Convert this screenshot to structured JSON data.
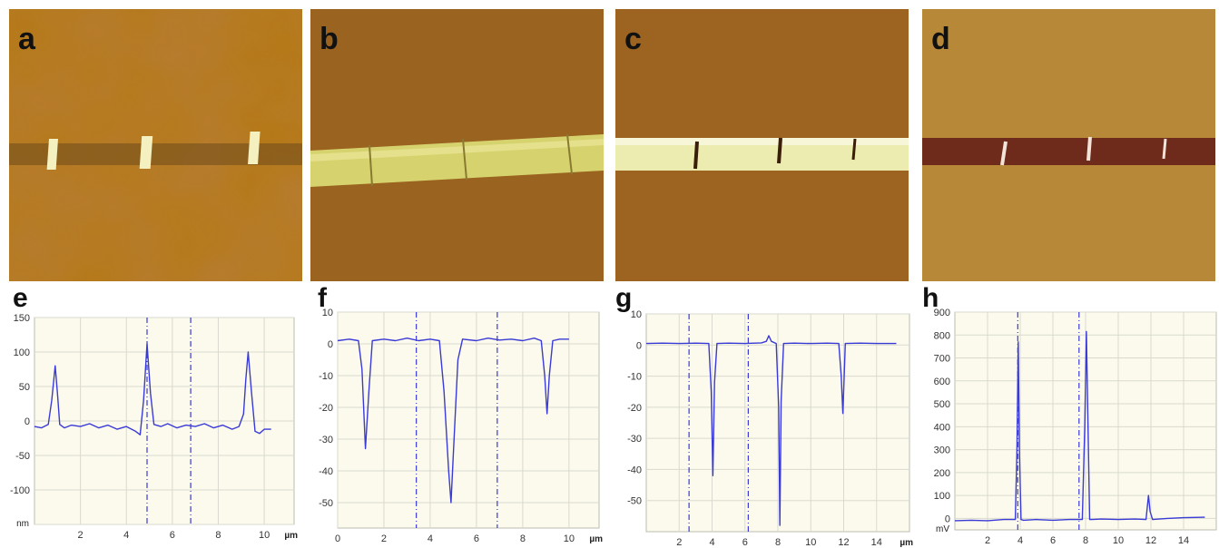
{
  "panels": {
    "a": "a",
    "b": "b",
    "c": "c",
    "d": "d",
    "e": "e",
    "f": "f",
    "g": "g",
    "h": "h"
  },
  "colors": {
    "trace": "#3a3ad6",
    "plot_bg": "#fbfaec",
    "grid": "#d9d9cf",
    "afm_a_base": "#b77c2e",
    "afm_b_base": "#9a6320",
    "afm_b_strip": "#d6d36e",
    "afm_c_base": "#9c6420",
    "afm_c_strip": "#ecebb0",
    "afm_d_base": "#b78838",
    "afm_d_strip": "#6e2a1a"
  },
  "chart_data": [
    {
      "id": "e",
      "type": "line",
      "xlabel": "µm",
      "ylabel": "nm",
      "xlim": [
        0,
        11.3
      ],
      "ylim": [
        -150,
        150
      ],
      "xticks": [
        {
          "v": 2,
          "t": "2"
        },
        {
          "v": 4,
          "t": "4"
        },
        {
          "v": 6,
          "t": "6"
        },
        {
          "v": 8,
          "t": "8"
        },
        {
          "v": 10,
          "t": "10"
        }
      ],
      "yticks": [
        {
          "v": 150,
          "t": "150"
        },
        {
          "v": 100,
          "t": "100"
        },
        {
          "v": 50,
          "t": "50"
        },
        {
          "v": 0,
          "t": "0"
        },
        {
          "v": -50,
          "t": "-50"
        },
        {
          "v": -100,
          "t": "-100"
        },
        {
          "v": -150,
          "t": ""
        }
      ],
      "cursors": [
        4.9,
        6.8
      ],
      "x": [
        0,
        0.3,
        0.6,
        0.75,
        0.9,
        1.0,
        1.1,
        1.3,
        1.6,
        2.0,
        2.4,
        2.8,
        3.2,
        3.6,
        4.0,
        4.4,
        4.6,
        4.75,
        4.9,
        5.05,
        5.2,
        5.5,
        5.8,
        6.2,
        6.6,
        7.0,
        7.4,
        7.8,
        8.2,
        8.6,
        8.9,
        9.1,
        9.2,
        9.3,
        9.45,
        9.6,
        9.8,
        10.0,
        10.3
      ],
      "y": [
        -8,
        -10,
        -5,
        30,
        80,
        40,
        -5,
        -10,
        -6,
        -8,
        -4,
        -10,
        -6,
        -12,
        -8,
        -15,
        -20,
        30,
        112,
        40,
        -5,
        -8,
        -4,
        -10,
        -6,
        -8,
        -4,
        -10,
        -6,
        -12,
        -8,
        10,
        60,
        100,
        40,
        -15,
        -18,
        -12,
        -12
      ]
    },
    {
      "id": "f",
      "type": "line",
      "xlabel": "µm",
      "ylabel": "",
      "xlim": [
        0,
        11.3
      ],
      "ylim": [
        -58,
        10
      ],
      "xticks": [
        {
          "v": 0,
          "t": "0"
        },
        {
          "v": 2,
          "t": "2"
        },
        {
          "v": 4,
          "t": "4"
        },
        {
          "v": 6,
          "t": "6"
        },
        {
          "v": 8,
          "t": "8"
        },
        {
          "v": 10,
          "t": "10"
        }
      ],
      "yticks": [
        {
          "v": 10,
          "t": "10"
        },
        {
          "v": 0,
          "t": "0"
        },
        {
          "v": -10,
          "t": "-10"
        },
        {
          "v": -20,
          "t": "-20"
        },
        {
          "v": -30,
          "t": "-30"
        },
        {
          "v": -40,
          "t": "-40"
        },
        {
          "v": -50,
          "t": "-50"
        }
      ],
      "cursors": [
        3.4,
        6.9
      ],
      "x": [
        0,
        0.5,
        0.9,
        1.05,
        1.2,
        1.35,
        1.5,
        2.0,
        2.5,
        3.0,
        3.5,
        4.0,
        4.4,
        4.6,
        4.8,
        4.9,
        5.0,
        5.2,
        5.4,
        6.0,
        6.5,
        7.0,
        7.5,
        8.0,
        8.5,
        8.8,
        8.95,
        9.05,
        9.15,
        9.3,
        9.6,
        10.0
      ],
      "y": [
        1,
        1.5,
        1,
        -8,
        -33,
        -15,
        1,
        1.5,
        1,
        1.8,
        1,
        1.5,
        1,
        -15,
        -40,
        -50,
        -35,
        -5,
        1.5,
        1,
        1.8,
        1.2,
        1.5,
        1,
        1.8,
        1,
        -10,
        -22,
        -10,
        1,
        1.5,
        1.5
      ]
    },
    {
      "id": "g",
      "type": "line",
      "xlabel": "µm",
      "ylabel": "",
      "xlim": [
        0,
        16
      ],
      "ylim": [
        -60,
        10
      ],
      "xticks": [
        {
          "v": 2,
          "t": "2"
        },
        {
          "v": 4,
          "t": "4"
        },
        {
          "v": 6,
          "t": "6"
        },
        {
          "v": 8,
          "t": "8"
        },
        {
          "v": 10,
          "t": "10"
        },
        {
          "v": 12,
          "t": "12"
        },
        {
          "v": 14,
          "t": "14"
        }
      ],
      "yticks": [
        {
          "v": 10,
          "t": "10"
        },
        {
          "v": 0,
          "t": "0"
        },
        {
          "v": -10,
          "t": "-10"
        },
        {
          "v": -20,
          "t": "-20"
        },
        {
          "v": -30,
          "t": "-30"
        },
        {
          "v": -40,
          "t": "-40"
        },
        {
          "v": -50,
          "t": "-50"
        }
      ],
      "cursors": [
        2.6,
        6.2
      ],
      "x": [
        0,
        1,
        2,
        3,
        3.8,
        3.95,
        4.05,
        4.15,
        4.3,
        5,
        6,
        7,
        7.3,
        7.45,
        7.6,
        7.9,
        8.05,
        8.12,
        8.2,
        8.35,
        9,
        10,
        11,
        11.7,
        11.85,
        11.95,
        12.1,
        13,
        14,
        15.2
      ],
      "y": [
        0.5,
        0.6,
        0.5,
        0.6,
        0.5,
        -15,
        -42,
        -12,
        0.5,
        0.6,
        0.5,
        0.7,
        1.2,
        3,
        1.2,
        0.5,
        -20,
        -58,
        -18,
        0.5,
        0.6,
        0.5,
        0.6,
        0.5,
        -10,
        -22,
        0.5,
        0.6,
        0.5,
        0.5
      ]
    },
    {
      "id": "h",
      "type": "line",
      "xlabel": "",
      "ylabel": "mV",
      "xlim": [
        0,
        16
      ],
      "ylim": [
        -50,
        900
      ],
      "xticks": [
        {
          "v": 2,
          "t": "2"
        },
        {
          "v": 4,
          "t": "4"
        },
        {
          "v": 6,
          "t": "6"
        },
        {
          "v": 8,
          "t": "8"
        },
        {
          "v": 10,
          "t": "10"
        },
        {
          "v": 12,
          "t": "12"
        },
        {
          "v": 14,
          "t": "14"
        }
      ],
      "yticks": [
        {
          "v": 900,
          "t": "900"
        },
        {
          "v": 800,
          "t": "800"
        },
        {
          "v": 700,
          "t": "700"
        },
        {
          "v": 600,
          "t": "600"
        },
        {
          "v": 500,
          "t": "500"
        },
        {
          "v": 400,
          "t": "400"
        },
        {
          "v": 300,
          "t": "300"
        },
        {
          "v": 200,
          "t": "200"
        },
        {
          "v": 100,
          "t": "100"
        },
        {
          "v": 0,
          "t": "0"
        }
      ],
      "cursors": [
        3.85,
        7.6
      ],
      "x": [
        0,
        1,
        2,
        3,
        3.7,
        3.8,
        3.88,
        3.95,
        4.05,
        4.2,
        5,
        6,
        7,
        7.8,
        7.95,
        8.05,
        8.15,
        8.25,
        8.4,
        9,
        10,
        11,
        11.7,
        11.85,
        11.95,
        12.1,
        13,
        14,
        15.3
      ],
      "y": [
        -10,
        -8,
        -10,
        -5,
        -5,
        300,
        770,
        300,
        -5,
        -8,
        -5,
        -8,
        -5,
        -5,
        400,
        815,
        400,
        -5,
        -5,
        -3,
        -5,
        -3,
        -5,
        100,
        30,
        -5,
        0,
        3,
        5
      ]
    }
  ]
}
